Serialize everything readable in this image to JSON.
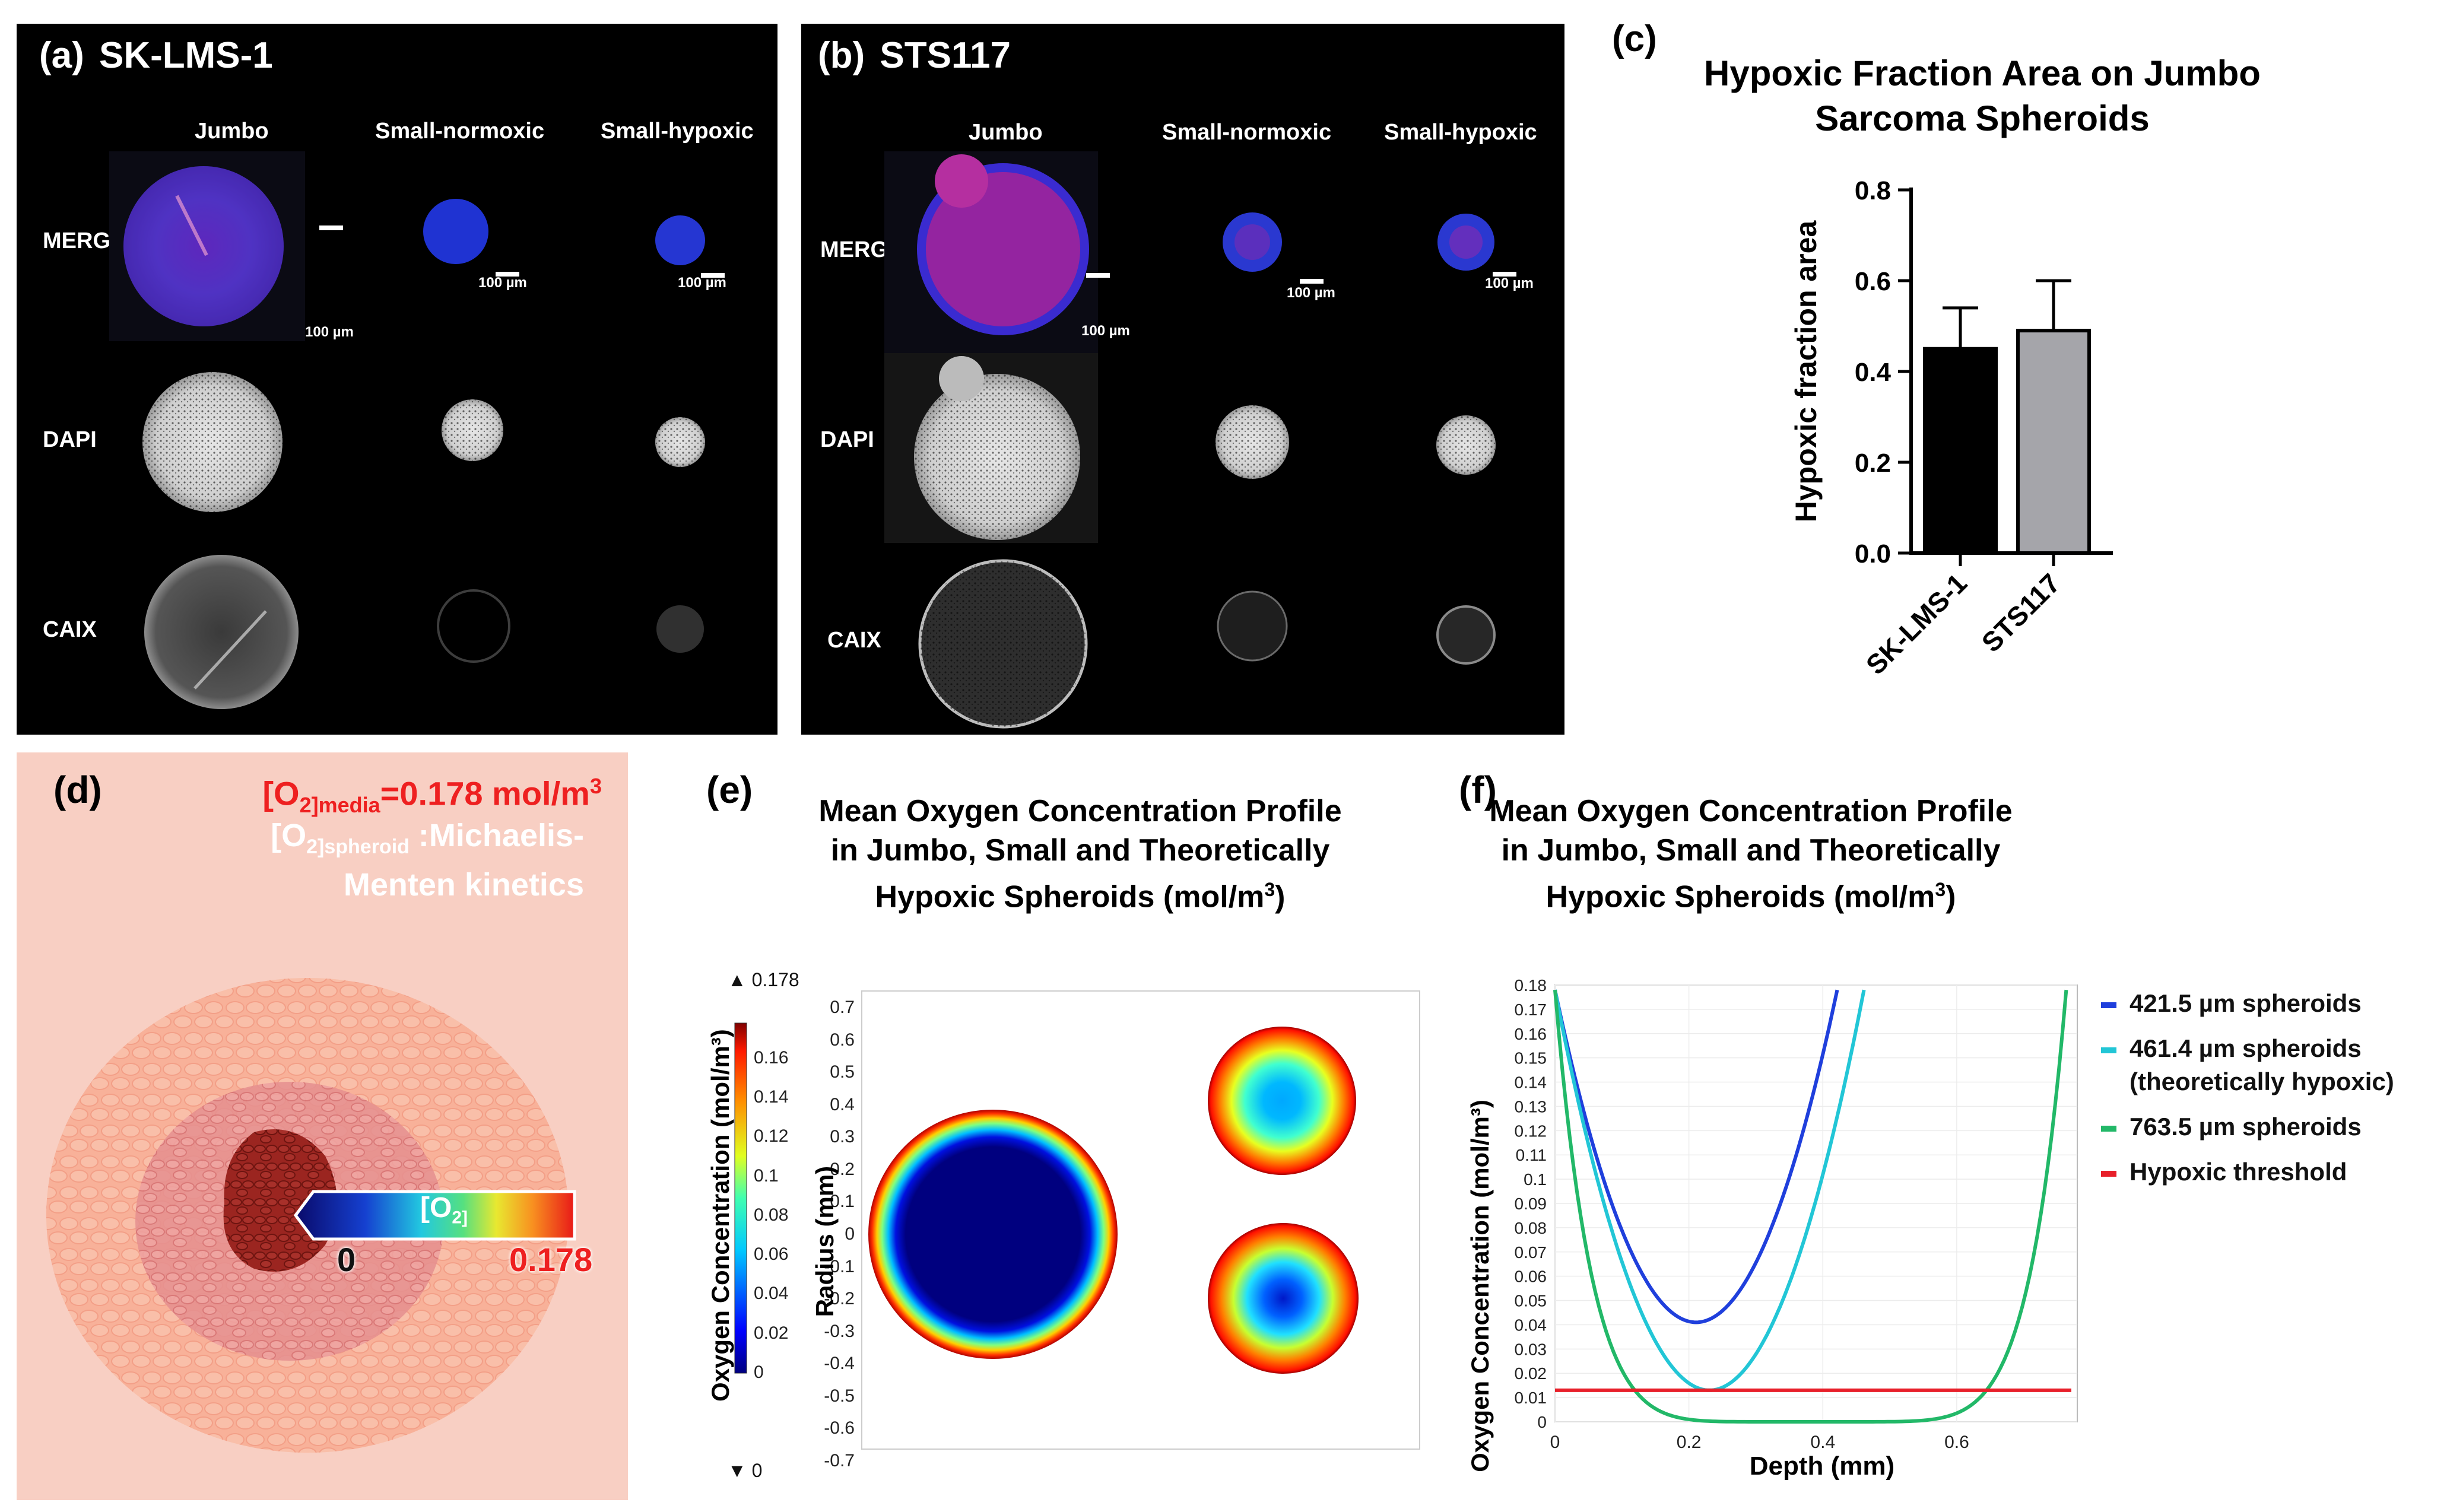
{
  "panel_a": {
    "label": "(a)",
    "cell_line": "SK-LMS-1",
    "columns": [
      "Jumbo",
      "Small-normoxic",
      "Small-hypoxic"
    ],
    "rows": [
      "MERGE",
      "DAPI",
      "CAIX"
    ],
    "scale_bars": [
      "100 µm",
      "100 µm",
      "100 µm"
    ]
  },
  "panel_b": {
    "label": "(b)",
    "cell_line": "STS117",
    "columns": [
      "Jumbo",
      "Small-normoxic",
      "Small-hypoxic"
    ],
    "rows": [
      "MERGE",
      "DAPI",
      "CAIX"
    ],
    "scale_bars": [
      "100 µm",
      "100 µm",
      "100 µm"
    ]
  },
  "panel_c": {
    "label": "(c)",
    "chart_data": {
      "type": "bar",
      "title": "Hypoxic Fraction Area on Jumbo Sarcoma Spheroids",
      "title_lines": [
        "Hypoxic Fraction Area on Jumbo",
        "Sarcoma Spheroids"
      ],
      "categories": [
        "SK-LMS-1",
        "STS117"
      ],
      "values": [
        0.45,
        0.49
      ],
      "error_upper": [
        0.09,
        0.11
      ],
      "bar_colors": [
        "#000000",
        "#a5a5aa"
      ],
      "ylabel": "Hypoxic fraction area",
      "ylim": [
        0,
        0.8
      ],
      "yticks": [
        "0.0",
        "0.2",
        "0.4",
        "0.6",
        "0.8"
      ]
    }
  },
  "panel_d": {
    "label": "(d)",
    "media_line": "[O2]media=0.178 mol/m3",
    "media_prefix": "[O",
    "media_sub1": "2]",
    "media_sub2": "media",
    "media_value": "=0.178 mol/m",
    "media_sup": "3",
    "spheroid_prefix": "[O",
    "spheroid_sub1": "2]",
    "spheroid_sub2": "spheroid",
    "spheroid_rest": " :Michaelis-",
    "spheroid_line2": "Menten kinetics",
    "gradient_label": "[O",
    "gradient_sub": "2]",
    "scale_min": "0",
    "scale_max": "0.178"
  },
  "panel_e": {
    "label": "(e)",
    "title_lines": [
      "Mean Oxygen Concentration Profile",
      "in Jumbo, Small and Theoretically",
      "Hypoxic Spheroids (mol/m"
    ],
    "title_sup": "3",
    "title_end": ")",
    "colorbar_label": "Oxygen Concentration (mol/m³)",
    "colorbar_max": "▲ 0.178",
    "colorbar_min": "▼ 0",
    "colorbar_ticks": [
      "0.16",
      "0.14",
      "0.12",
      "0.1",
      "0.08",
      "0.06",
      "0.04",
      "0.02",
      "0"
    ],
    "ylabel": "Radius (mm)",
    "yticks": [
      "0.7",
      "0.6",
      "0.5",
      "0.4",
      "0.3",
      "0.2",
      "0.1",
      "0",
      "-0.1",
      "-0.2",
      "-0.3",
      "-0.4",
      "-0.5",
      "-0.6",
      "-0.7"
    ]
  },
  "panel_f": {
    "label": "(f)",
    "title_lines": [
      "Mean Oxygen Concentration Profile",
      "in Jumbo, Small and Theoretically",
      "Hypoxic Spheroids (mol/m"
    ],
    "title_sup": "3",
    "title_end": ")",
    "chart_data": {
      "type": "line",
      "xlabel": "Depth (mm)",
      "ylabel": "Oxygen Concentration (mol/m³)",
      "xlim": [
        0,
        0.78
      ],
      "ylim": [
        0,
        0.18
      ],
      "xticks": [
        "0",
        "0.2",
        "0.4",
        "0.6"
      ],
      "yticks": [
        "0",
        "0.01",
        "0.02",
        "0.03",
        "0.04",
        "0.05",
        "0.06",
        "0.07",
        "0.08",
        "0.09",
        "0.1",
        "0.11",
        "0.12",
        "0.13",
        "0.14",
        "0.15",
        "0.16",
        "0.17",
        "0.18"
      ],
      "series": [
        {
          "name": "421.5 µm spheroids",
          "color": "#1f3fdc",
          "diameter_mm": 0.4215,
          "min_value": 0.041,
          "max_value": 0.178
        },
        {
          "name": "461.4 µm spheroids",
          "name_line2": "(theoretically hypoxic)",
          "color": "#22c6d6",
          "diameter_mm": 0.4614,
          "min_value": 0.013,
          "max_value": 0.178
        },
        {
          "name": "763.5 µm spheroids",
          "color": "#22b868",
          "diameter_mm": 0.7635,
          "min_value": 0.0,
          "max_value": 0.178
        },
        {
          "name": "Hypoxic threshold",
          "color": "#e8202a",
          "threshold": 0.013
        }
      ]
    }
  }
}
